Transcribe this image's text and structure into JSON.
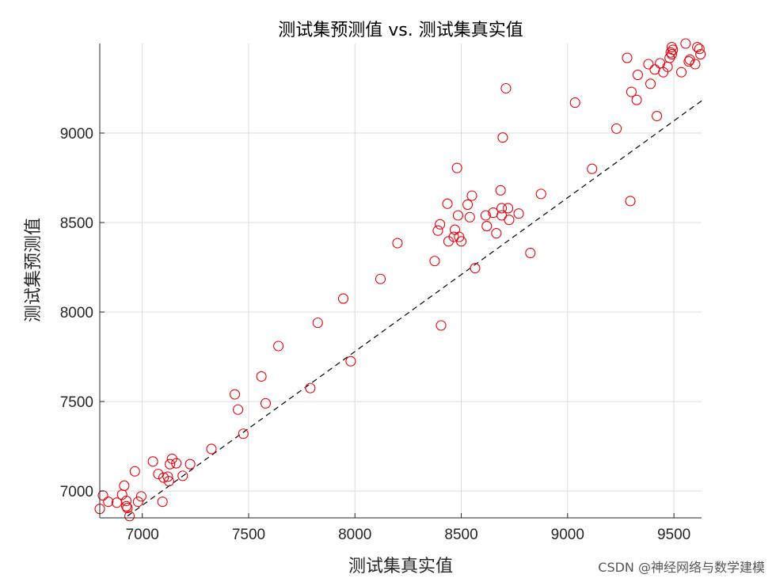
{
  "watermark": "CSDN @神经网络与数学建模",
  "colors": {
    "marker": "#e8000b",
    "grid": "#dcdcdc",
    "axis": "#262626",
    "line": "#000000"
  },
  "chart_data": {
    "type": "scatter",
    "title": "测试集预测值 vs. 测试集真实值",
    "xlabel": "测试集真实值",
    "ylabel": "测试集预测值",
    "xlim": [
      6800,
      9630
    ],
    "ylim": [
      6850,
      9500
    ],
    "xticks": [
      7000,
      7500,
      8000,
      8500,
      9000,
      9500
    ],
    "yticks": [
      7000,
      7500,
      8000,
      8500,
      9000
    ],
    "grid": true,
    "reference_line": {
      "style": "dashed",
      "from": [
        6930,
        6860
      ],
      "to": [
        9630,
        9180
      ]
    },
    "marker": "circle-open",
    "points": [
      [
        6800,
        6900
      ],
      [
        6815,
        6975
      ],
      [
        6840,
        6940
      ],
      [
        6880,
        6935
      ],
      [
        6905,
        6980
      ],
      [
        6915,
        7030
      ],
      [
        6925,
        6945
      ],
      [
        6925,
        6915
      ],
      [
        6930,
        6905
      ],
      [
        6940,
        6860
      ],
      [
        6965,
        7110
      ],
      [
        6980,
        6940
      ],
      [
        6995,
        6970
      ],
      [
        7050,
        7165
      ],
      [
        7075,
        7095
      ],
      [
        7095,
        6940
      ],
      [
        7100,
        7075
      ],
      [
        7120,
        7080
      ],
      [
        7125,
        7055
      ],
      [
        7130,
        7150
      ],
      [
        7140,
        7180
      ],
      [
        7160,
        7155
      ],
      [
        7190,
        7085
      ],
      [
        7225,
        7150
      ],
      [
        7325,
        7235
      ],
      [
        7435,
        7540
      ],
      [
        7450,
        7455
      ],
      [
        7475,
        7320
      ],
      [
        7560,
        7640
      ],
      [
        7580,
        7490
      ],
      [
        7640,
        7810
      ],
      [
        7790,
        7575
      ],
      [
        7825,
        7940
      ],
      [
        7945,
        8075
      ],
      [
        7980,
        7725
      ],
      [
        8120,
        8185
      ],
      [
        8200,
        8385
      ],
      [
        8375,
        8285
      ],
      [
        8390,
        8455
      ],
      [
        8400,
        8490
      ],
      [
        8405,
        7925
      ],
      [
        8435,
        8605
      ],
      [
        8440,
        8395
      ],
      [
        8465,
        8420
      ],
      [
        8470,
        8460
      ],
      [
        8480,
        8805
      ],
      [
        8485,
        8540
      ],
      [
        8490,
        8420
      ],
      [
        8500,
        8395
      ],
      [
        8530,
        8600
      ],
      [
        8540,
        8530
      ],
      [
        8550,
        8650
      ],
      [
        8565,
        8245
      ],
      [
        8615,
        8540
      ],
      [
        8620,
        8480
      ],
      [
        8650,
        8555
      ],
      [
        8665,
        8440
      ],
      [
        8685,
        8680
      ],
      [
        8690,
        8580
      ],
      [
        8690,
        8540
      ],
      [
        8695,
        8975
      ],
      [
        8710,
        9250
      ],
      [
        8720,
        8580
      ],
      [
        8725,
        8515
      ],
      [
        8770,
        8550
      ],
      [
        8825,
        8330
      ],
      [
        8875,
        8660
      ],
      [
        9035,
        9170
      ],
      [
        9115,
        8800
      ],
      [
        9230,
        9025
      ],
      [
        9280,
        9420
      ],
      [
        9295,
        8620
      ],
      [
        9300,
        9230
      ],
      [
        9325,
        9185
      ],
      [
        9330,
        9325
      ],
      [
        9380,
        9385
      ],
      [
        9390,
        9275
      ],
      [
        9410,
        9355
      ],
      [
        9420,
        9095
      ],
      [
        9435,
        9390
      ],
      [
        9450,
        9340
      ],
      [
        9470,
        9370
      ],
      [
        9480,
        9420
      ],
      [
        9485,
        9450
      ],
      [
        9490,
        9440
      ],
      [
        9495,
        9465
      ],
      [
        9490,
        9480
      ],
      [
        9535,
        9340
      ],
      [
        9555,
        9500
      ],
      [
        9570,
        9400
      ],
      [
        9575,
        9410
      ],
      [
        9600,
        9385
      ],
      [
        9610,
        9480
      ],
      [
        9620,
        9470
      ],
      [
        9625,
        9440
      ]
    ]
  }
}
